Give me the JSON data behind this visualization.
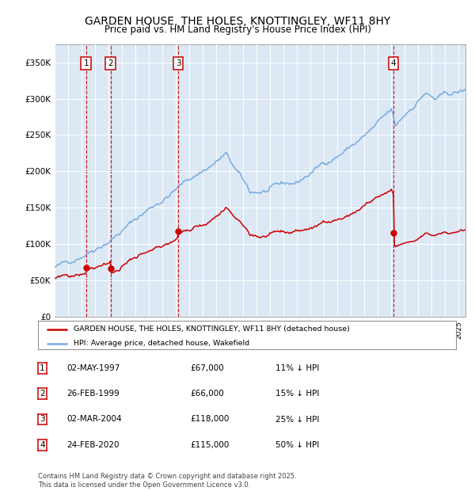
{
  "title": "GARDEN HOUSE, THE HOLES, KNOTTINGLEY, WF11 8HY",
  "subtitle": "Price paid vs. HM Land Registry's House Price Index (HPI)",
  "title_fontsize": 10,
  "subtitle_fontsize": 8.5,
  "background_color": "#dce9f5",
  "fig_bg_color": "#ffffff",
  "red_line_color": "#cc0000",
  "blue_line_color": "#7aaadd",
  "dashed_line_color": "#cc0000",
  "yticks": [
    0,
    50000,
    100000,
    150000,
    200000,
    250000,
    300000,
    350000
  ],
  "ytick_labels": [
    "£0",
    "£50K",
    "£100K",
    "£150K",
    "£200K",
    "£250K",
    "£300K",
    "£350K"
  ],
  "transactions": [
    {
      "label": "1",
      "x": 1997.33,
      "price": 67000
    },
    {
      "label": "2",
      "x": 1999.15,
      "price": 66000
    },
    {
      "label": "3",
      "x": 2004.17,
      "price": 118000
    },
    {
      "label": "4",
      "x": 2020.15,
      "price": 115000
    }
  ],
  "legend_label_red": "GARDEN HOUSE, THE HOLES, KNOTTINGLEY, WF11 8HY (detached house)",
  "legend_label_blue": "HPI: Average price, detached house, Wakefield",
  "footer": "Contains HM Land Registry data © Crown copyright and database right 2025.\nThis data is licensed under the Open Government Licence v3.0.",
  "table_rows": [
    [
      "1",
      "02-MAY-1997",
      "£67,000",
      "11% ↓ HPI"
    ],
    [
      "2",
      "26-FEB-1999",
      "£66,000",
      "15% ↓ HPI"
    ],
    [
      "3",
      "02-MAR-2004",
      "£118,000",
      "25% ↓ HPI"
    ],
    [
      "4",
      "24-FEB-2020",
      "£115,000",
      "50% ↓ HPI"
    ]
  ]
}
